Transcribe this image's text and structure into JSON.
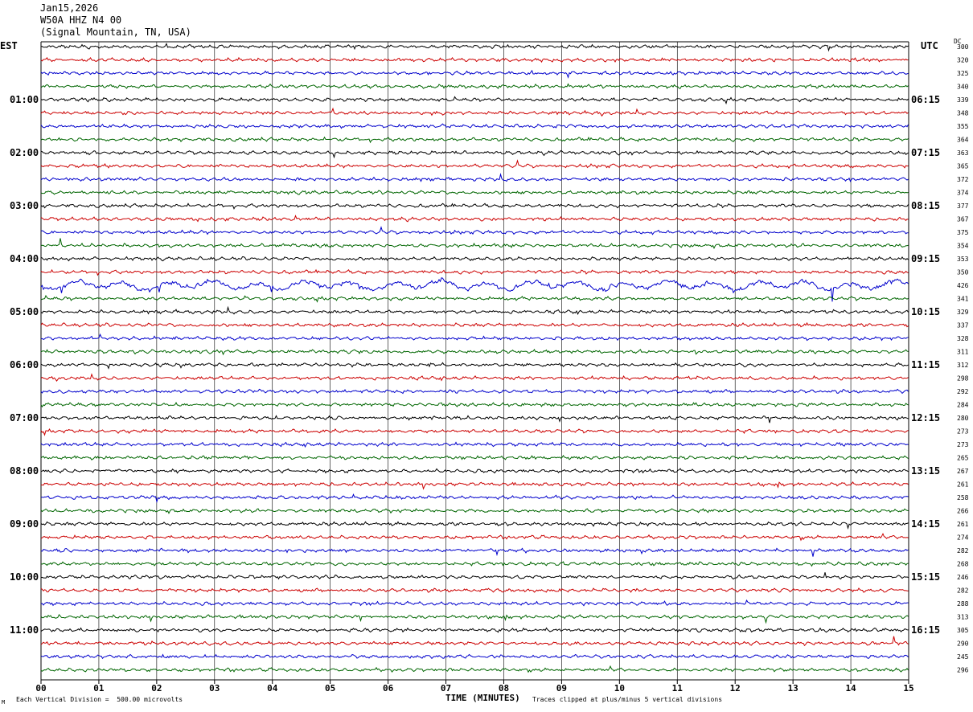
{
  "header": {
    "date": "Jan15,2026",
    "station": "W50A HHZ N4 00",
    "location": "(Signal Mountain, TN, USA)"
  },
  "left_tz": "EST",
  "right_tz": "UTC",
  "dc_label": "DC",
  "footer": {
    "scale": "Each Vertical Division =  500.00 microvolts",
    "clip": "Traces clipped at plus/minus 5 vertical divisions",
    "mark": "M"
  },
  "chart_data": {
    "type": "line",
    "title": "",
    "xlabel": "TIME (MINUTES)",
    "ylabel": "",
    "xlim": [
      0,
      15
    ],
    "grid": true,
    "x_ticks": [
      "00",
      "01",
      "02",
      "03",
      "04",
      "05",
      "06",
      "07",
      "08",
      "09",
      "10",
      "11",
      "12",
      "13",
      "14",
      "15"
    ],
    "left_time_labels": [
      "01:00",
      "02:00",
      "03:00",
      "04:00",
      "05:00",
      "06:00",
      "07:00",
      "08:00",
      "09:00",
      "10:00",
      "11:00"
    ],
    "right_time_labels": [
      "06:15",
      "07:15",
      "08:15",
      "09:15",
      "10:15",
      "11:15",
      "12:15",
      "13:15",
      "14:15",
      "15:15",
      "16:15"
    ],
    "trace_colors": [
      "#000000",
      "#cc0000",
      "#0000cc",
      "#006600"
    ],
    "dc_values": [
      300,
      320,
      325,
      340,
      339,
      348,
      355,
      364,
      363,
      365,
      372,
      374,
      377,
      367,
      375,
      354,
      353,
      350,
      426,
      341,
      329,
      337,
      328,
      311,
      312,
      298,
      292,
      284,
      280,
      273,
      273,
      265,
      267,
      261,
      258,
      266,
      261,
      274,
      282,
      268,
      246,
      282,
      288,
      313,
      305,
      290,
      245,
      296
    ],
    "trace_count": 48,
    "noisy_traces": [
      18
    ]
  }
}
